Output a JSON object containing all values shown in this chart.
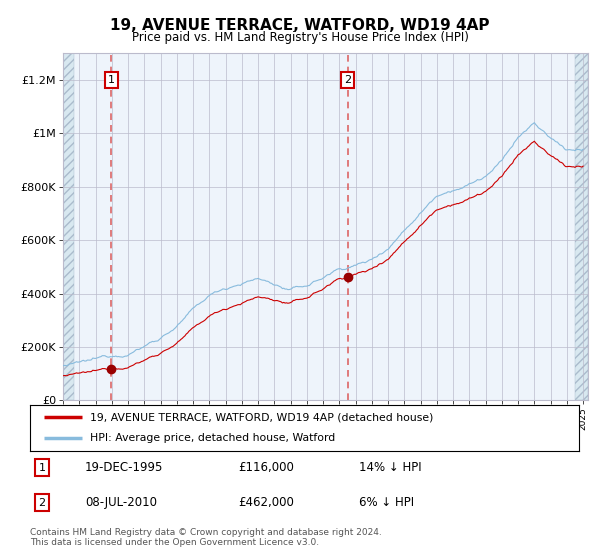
{
  "title": "19, AVENUE TERRACE, WATFORD, WD19 4AP",
  "subtitle": "Price paid vs. HM Land Registry's House Price Index (HPI)",
  "x_start_year": 1993,
  "x_end_year": 2025,
  "ylim": [
    0,
    1300000
  ],
  "yticks": [
    0,
    200000,
    400000,
    600000,
    800000,
    1000000,
    1200000
  ],
  "ytick_labels": [
    "£0",
    "£200K",
    "£400K",
    "£600K",
    "£800K",
    "£1M",
    "£1.2M"
  ],
  "sale1_date_decimal": 1995.97,
  "sale1_price": 116000,
  "sale1_label": "1",
  "sale2_date_decimal": 2010.52,
  "sale2_price": 462000,
  "sale2_label": "2",
  "hpi_line_color": "#88bbdd",
  "price_line_color": "#cc0000",
  "sale_marker_color": "#990000",
  "vline_color": "#dd6666",
  "bg_main_color": "#ddeeff",
  "bg_plot_color": "#eef4fb",
  "grid_color": "#bbbbcc",
  "legend_label_red": "19, AVENUE TERRACE, WATFORD, WD19 4AP (detached house)",
  "legend_label_blue": "HPI: Average price, detached house, Watford",
  "annotation1_date": "19-DEC-1995",
  "annotation1_price": "£116,000",
  "annotation1_hpi": "14% ↓ HPI",
  "annotation2_date": "08-JUL-2010",
  "annotation2_price": "£462,000",
  "annotation2_hpi": "6% ↓ HPI",
  "footnote": "Contains HM Land Registry data © Crown copyright and database right 2024.\nThis data is licensed under the Open Government Licence v3.0."
}
